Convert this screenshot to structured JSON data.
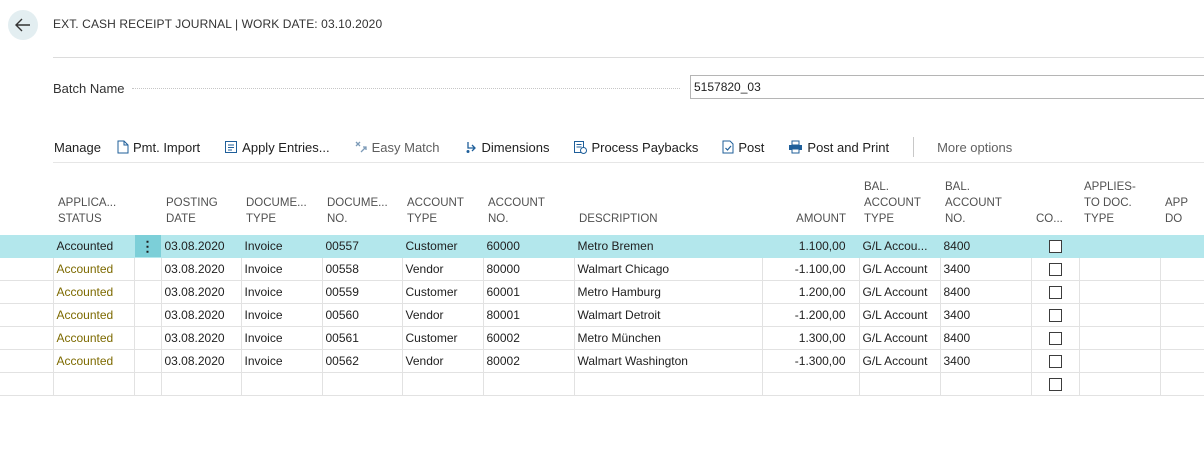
{
  "header": {
    "title": "EXT. CASH RECEIPT JOURNAL | WORK DATE: 03.10.2020",
    "back_icon": "arrow-left-icon"
  },
  "batch": {
    "label": "Batch Name",
    "value": "5157820_03"
  },
  "toolbar": {
    "manage": "Manage",
    "pmt_import": "Pmt. Import",
    "apply_entries": "Apply Entries...",
    "easy_match": "Easy Match",
    "dimensions": "Dimensions",
    "process_paybacks": "Process Paybacks",
    "post": "Post",
    "post_and_print": "Post and Print",
    "more_options": "More options"
  },
  "table": {
    "headers": {
      "status": [
        "APPLICA...",
        "STATUS"
      ],
      "posting_date": [
        "POSTING",
        "DATE"
      ],
      "doc_type": [
        "DOCUME...",
        "TYPE"
      ],
      "doc_no": [
        "DOCUME...",
        "NO."
      ],
      "account_type": [
        "ACCOUNT",
        "TYPE"
      ],
      "account_no": [
        "ACCOUNT",
        "NO."
      ],
      "description": [
        "DESCRIPTION"
      ],
      "amount": [
        "AMOUNT"
      ],
      "bal_account_type": [
        "BAL.",
        "ACCOUNT",
        "TYPE"
      ],
      "bal_account_no": [
        "BAL.",
        "ACCOUNT",
        "NO."
      ],
      "co": [
        "CO..."
      ],
      "applies_to_doc_type": [
        "APPLIES-",
        "TO DOC.",
        "TYPE"
      ],
      "applies_to_doc_no": [
        "APP",
        "DO"
      ]
    },
    "rows": [
      {
        "status": "Accounted",
        "posting_date": "03.08.2020",
        "doc_type": "Invoice",
        "doc_no": "00557",
        "account_type": "Customer",
        "account_no": "60000",
        "description": "Metro Bremen",
        "amount": "1.100,00",
        "bal_account_type": "G/L Accou...",
        "bal_account_no": "8400"
      },
      {
        "status": "Accounted",
        "posting_date": "03.08.2020",
        "doc_type": "Invoice",
        "doc_no": "00558",
        "account_type": "Vendor",
        "account_no": "80000",
        "description": "Walmart Chicago",
        "amount": "-1.100,00",
        "bal_account_type": "G/L Account",
        "bal_account_no": "3400"
      },
      {
        "status": "Accounted",
        "posting_date": "03.08.2020",
        "doc_type": "Invoice",
        "doc_no": "00559",
        "account_type": "Customer",
        "account_no": "60001",
        "description": "Metro Hamburg",
        "amount": "1.200,00",
        "bal_account_type": "G/L Account",
        "bal_account_no": "8400"
      },
      {
        "status": "Accounted",
        "posting_date": "03.08.2020",
        "doc_type": "Invoice",
        "doc_no": "00560",
        "account_type": "Vendor",
        "account_no": "80001",
        "description": "Walmart Detroit",
        "amount": "-1.200,00",
        "bal_account_type": "G/L Account",
        "bal_account_no": "3400"
      },
      {
        "status": "Accounted",
        "posting_date": "03.08.2020",
        "doc_type": "Invoice",
        "doc_no": "00561",
        "account_type": "Customer",
        "account_no": "60002",
        "description": "Metro München",
        "amount": "1.300,00",
        "bal_account_type": "G/L Account",
        "bal_account_no": "8400"
      },
      {
        "status": "Accounted",
        "posting_date": "03.08.2020",
        "doc_type": "Invoice",
        "doc_no": "00562",
        "account_type": "Vendor",
        "account_no": "80002",
        "description": "Walmart Washington",
        "amount": "-1.300,00",
        "bal_account_type": "G/L Account",
        "bal_account_no": "3400"
      },
      {
        "status": "",
        "posting_date": "",
        "doc_type": "",
        "doc_no": "",
        "account_type": "",
        "account_no": "",
        "description": "",
        "amount": "",
        "bal_account_type": "",
        "bal_account_no": ""
      }
    ]
  },
  "colors": {
    "selected_row": "#b3e7ec",
    "row_menu_cell": "#7ccfd8",
    "status_text": "#7d6a00",
    "back_button_bg": "#e3eef1"
  }
}
